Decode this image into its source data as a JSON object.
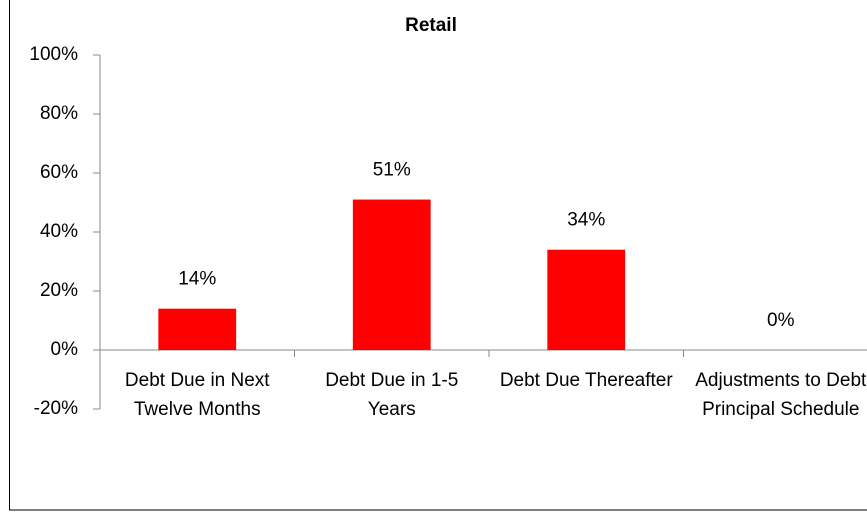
{
  "chart_data": {
    "type": "bar",
    "title": "Retail",
    "categories": [
      "Debt Due in Next Twelve Months",
      "Debt Due in 1-5 Years",
      "Debt Due Thereafter",
      "Adjustments to Debt Principal Schedule"
    ],
    "values": [
      14,
      51,
      34,
      0
    ],
    "value_labels": [
      "14%",
      "51%",
      "34%",
      "0%"
    ],
    "color": "#ff0000",
    "ylim": [
      -20,
      100
    ],
    "yticks": [
      {
        "value": -20,
        "label": "-20%"
      },
      {
        "value": 0,
        "label": "0%"
      },
      {
        "value": 20,
        "label": "20%"
      },
      {
        "value": 40,
        "label": "40%"
      },
      {
        "value": 60,
        "label": "60%"
      },
      {
        "value": 80,
        "label": "80%"
      },
      {
        "value": 100,
        "label": "100%"
      }
    ],
    "grid": false
  }
}
